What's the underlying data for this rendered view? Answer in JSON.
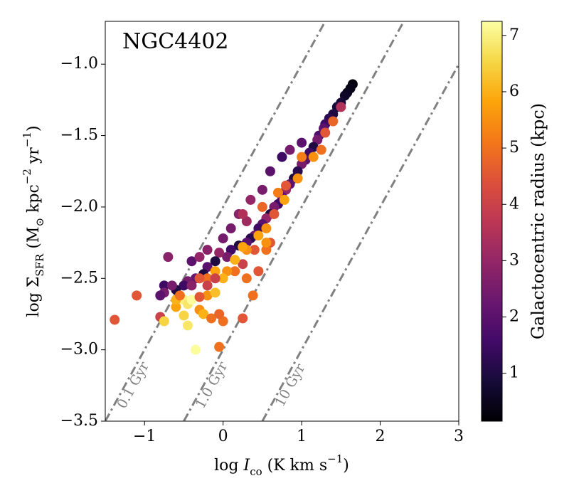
{
  "chart_data": {
    "type": "scatter",
    "title": "NGC4402",
    "x_label": [
      {
        "text": "log "
      },
      {
        "text": "I",
        "style": "italic"
      },
      {
        "text": "co",
        "shift": "sub"
      },
      {
        "text": " (K km s"
      },
      {
        "text": "−1",
        "shift": "super"
      },
      {
        "text": ")"
      }
    ],
    "y_label": [
      {
        "text": "log Σ"
      },
      {
        "text": "SFR",
        "shift": "sub"
      },
      {
        "text": " (M"
      },
      {
        "text": "⊙",
        "shift": "sub"
      },
      {
        "text": " kpc"
      },
      {
        "text": "−2",
        "shift": "super"
      },
      {
        "text": " yr"
      },
      {
        "text": "−1",
        "shift": "super"
      },
      {
        "text": ")"
      }
    ],
    "colorbar_label": "Galactocentric radius (kpc)",
    "colormap": "inferno",
    "xlim": [
      -1.5,
      3
    ],
    "ylim": [
      -3.5,
      -0.7
    ],
    "clim": [
      0.15,
      7.25
    ],
    "xticks": [
      {
        "value": -1,
        "label": "−1"
      },
      0,
      1,
      2,
      3
    ],
    "yticks": [
      {
        "value": -3.5,
        "label": "−3.5"
      },
      {
        "value": -3.0,
        "label": "−3.0"
      },
      {
        "value": -2.5,
        "label": "−2.5"
      },
      {
        "value": -2.0,
        "label": "−2.0"
      },
      {
        "value": -1.5,
        "label": "−1.5"
      },
      {
        "value": -1.0,
        "label": "−1.0"
      }
    ],
    "cticks": [
      1,
      2,
      3,
      4,
      5,
      6,
      7
    ],
    "reference_lines": [
      {
        "label": "0.1 Gyr",
        "color": "#808080",
        "x": [
          -1.5,
          1.3
        ],
        "y": [
          -3.5,
          -0.7
        ]
      },
      {
        "label": "1.0 Gyr",
        "color": "#808080",
        "x": [
          -0.5,
          2.3
        ],
        "y": [
          -3.5,
          -0.7
        ]
      },
      {
        "label": "10 Gyr",
        "color": "#808080",
        "x": [
          0.5,
          3
        ],
        "y": [
          -3.5,
          -1.0
        ]
      }
    ],
    "x": [
      1.65,
      1.62,
      1.58,
      1.55,
      1.5,
      1.45,
      1.4,
      1.35,
      1.3,
      1.28,
      1.22,
      1.2,
      1.15,
      1.1,
      1.05,
      1.0,
      0.95,
      0.9,
      0.85,
      0.8,
      0.75,
      0.7,
      0.65,
      0.6,
      0.55,
      0.5,
      0.45,
      0.4,
      0.35,
      0.3,
      0.2,
      0.1,
      0.05,
      -0.05,
      -0.1,
      -0.2,
      -0.25,
      -0.35,
      -0.45,
      -0.5,
      -0.6,
      -0.75,
      -0.75,
      -0.7,
      -0.4,
      0.0,
      0.2,
      0.35,
      0.5,
      0.3,
      0.6,
      0.75,
      0.85,
      1.0,
      0.1,
      0.25,
      -0.2,
      -0.3,
      1.25,
      1.15,
      1.0,
      0.95,
      0.8,
      0.78,
      0.65,
      0.55,
      0.45,
      0.4,
      0.3,
      0.25,
      0.15,
      0.05,
      0.0,
      -0.1,
      -0.2,
      -0.3,
      0.25,
      0.15,
      0.5,
      0.7,
      1.3,
      1.4,
      1.5,
      0.6,
      0.55,
      -1.38,
      -1.1,
      -0.8,
      -0.75,
      -0.5,
      -0.45,
      -0.4,
      -0.3,
      -0.25,
      -0.15,
      -0.45,
      -0.5,
      -0.6,
      -0.2,
      -0.1,
      -0.35,
      -0.05,
      0.0,
      -0.05,
      0.25,
      0.3,
      0.38,
      0.45,
      0.55,
      -0.1,
      -0.3,
      -0.6,
      -0.55,
      -0.8,
      -0.65,
      -0.4,
      -0.2
    ],
    "values": [
      -1.14,
      -1.17,
      -1.2,
      -1.22,
      -1.27,
      -1.3,
      -1.35,
      -1.38,
      -1.42,
      -1.45,
      -1.5,
      -1.53,
      -1.58,
      -1.62,
      -1.67,
      -1.7,
      -1.75,
      -1.8,
      -1.84,
      -1.88,
      -1.93,
      -1.98,
      -2.0,
      -2.05,
      -2.08,
      -2.12,
      -2.15,
      -2.2,
      -2.22,
      -2.25,
      -2.27,
      -2.3,
      -2.35,
      -2.32,
      -2.38,
      -2.42,
      -2.47,
      -2.5,
      -2.52,
      -2.55,
      -2.58,
      -2.55,
      -2.6,
      -2.35,
      -2.38,
      -2.22,
      -2.05,
      -1.95,
      -1.88,
      -2.1,
      -1.75,
      -1.65,
      -1.6,
      -1.55,
      -2.15,
      -2.05,
      -2.3,
      -2.35,
      -1.6,
      -1.65,
      -1.65,
      -1.8,
      -1.85,
      -1.95,
      -2.05,
      -2.15,
      -2.2,
      -2.3,
      -2.3,
      -2.4,
      -2.45,
      -2.45,
      -2.5,
      -2.45,
      -2.5,
      -2.5,
      -2.28,
      -2.37,
      -2.0,
      -1.9,
      -1.48,
      -1.4,
      -1.3,
      -2.25,
      -2.3,
      -2.79,
      -2.62,
      -2.77,
      -2.8,
      -2.65,
      -2.68,
      -2.65,
      -2.72,
      -2.75,
      -2.78,
      -2.83,
      -2.76,
      -2.7,
      -2.62,
      -2.6,
      -3.0,
      -2.98,
      -2.8,
      -2.75,
      -2.78,
      -2.5,
      -2.62,
      -2.45,
      -2.25,
      -2.5,
      -2.63,
      -2.65,
      -2.62,
      -2.62,
      -2.55,
      -2.55,
      -2.55
    ],
    "color_values": [
      0.3,
      0.4,
      0.5,
      0.6,
      0.8,
      0.9,
      1.0,
      1.2,
      1.5,
      2.0,
      1.8,
      2.5,
      1.0,
      1.5,
      2.0,
      2.5,
      1.2,
      1.0,
      2.0,
      3.0,
      2.0,
      1.5,
      2.5,
      1.0,
      3.0,
      2.0,
      1.5,
      2.5,
      1.2,
      2.0,
      1.0,
      1.5,
      2.5,
      3.0,
      1.0,
      2.0,
      1.0,
      2.2,
      2.5,
      1.5,
      1.0,
      1.5,
      2.5,
      2.8,
      2.0,
      2.5,
      2.8,
      3.0,
      2.5,
      3.2,
      2.0,
      1.5,
      2.5,
      2.0,
      2.5,
      3.5,
      2.8,
      3.0,
      5.0,
      5.5,
      5.2,
      5.5,
      4.5,
      5.8,
      4.5,
      5.5,
      5.8,
      4.5,
      5.5,
      4.0,
      5.0,
      5.5,
      6.0,
      5.8,
      5.0,
      4.5,
      5.8,
      6.0,
      4.8,
      5.2,
      4.5,
      4.8,
      3.5,
      4.5,
      5.0,
      4.5,
      4.5,
      4.0,
      6.5,
      7.0,
      6.8,
      7.2,
      5.5,
      6.0,
      5.0,
      6.8,
      6.5,
      5.8,
      5.5,
      6.2,
      7.2,
      5.0,
      5.0,
      4.8,
      4.5,
      5.0,
      5.0,
      4.5,
      5.5,
      4.0,
      4.5,
      6.0,
      5.0,
      2.0,
      2.5,
      2.8,
      4.0
    ]
  }
}
